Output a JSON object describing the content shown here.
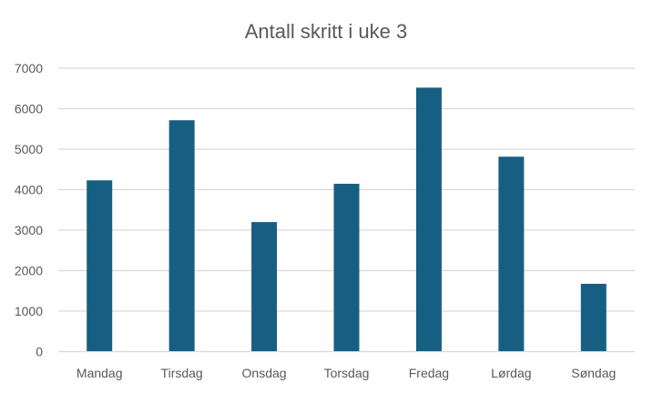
{
  "chart_data": {
    "type": "bar",
    "title": "Antall skritt i uke 3",
    "categories": [
      "Mandag",
      "Tirsdag",
      "Onsdag",
      "Torsdag",
      "Fredag",
      "Lørdag",
      "Søndag"
    ],
    "values": [
      4230,
      5715,
      3200,
      4145,
      6520,
      4815,
      1675
    ],
    "ylim": [
      0,
      7000
    ],
    "yticks": [
      "0",
      "1000",
      "2000",
      "3000",
      "4000",
      "5000",
      "6000",
      "7000"
    ],
    "xlabel": "",
    "ylabel": "",
    "grid": true,
    "legend": "none",
    "bar_color": "#175f82",
    "grid_color": "#d9d9d9"
  }
}
